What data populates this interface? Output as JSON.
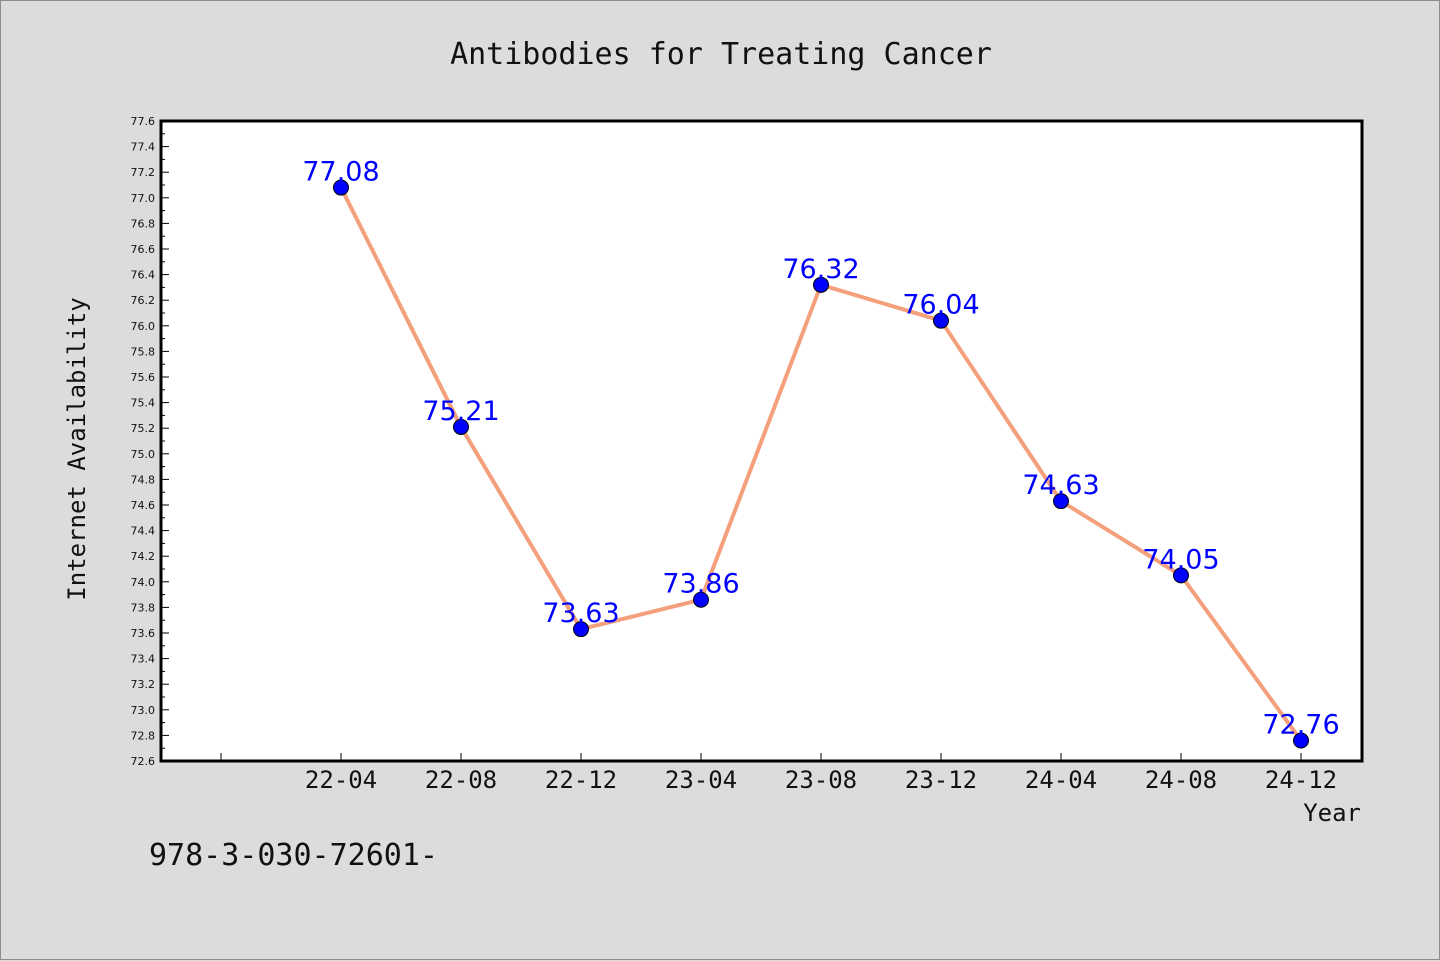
{
  "chart_data": {
    "type": "line",
    "title": "Antibodies for Treating Cancer",
    "xlabel": "Year",
    "ylabel": "Internet Availability",
    "categories": [
      "22-04",
      "22-08",
      "22-12",
      "23-04",
      "23-08",
      "23-12",
      "24-04",
      "24-08",
      "24-12"
    ],
    "series": [
      {
        "values": [
          77.08,
          75.21,
          73.63,
          73.86,
          76.32,
          76.04,
          74.63,
          74.05,
          72.76
        ],
        "value_labels": [
          "77.08",
          "75.21",
          "73.63",
          "73.86",
          "76.32",
          "76.04",
          "74.63",
          "74.05",
          "72.76"
        ],
        "line_color": "#f4a07c",
        "marker_color": "#0000ff"
      }
    ],
    "ylim": [
      72.6,
      77.6
    ],
    "yticks": [
      "72.6",
      "72.8",
      "73.0",
      "73.2",
      "73.4",
      "73.6",
      "73.8",
      "74.0",
      "74.2",
      "74.4",
      "74.6",
      "74.8",
      "75.0",
      "75.2",
      "75.4",
      "75.6",
      "75.8",
      "76.0",
      "76.2",
      "76.4",
      "76.6",
      "76.8",
      "77.0",
      "77.2",
      "77.4",
      "77.6"
    ],
    "grid": false,
    "legend": "none"
  },
  "footnote": "978-3-030-72601-",
  "colors": {
    "background": "#dcdcdc",
    "plot_background": "#ffffff",
    "axis": "#000000",
    "label": "#0000ff"
  }
}
